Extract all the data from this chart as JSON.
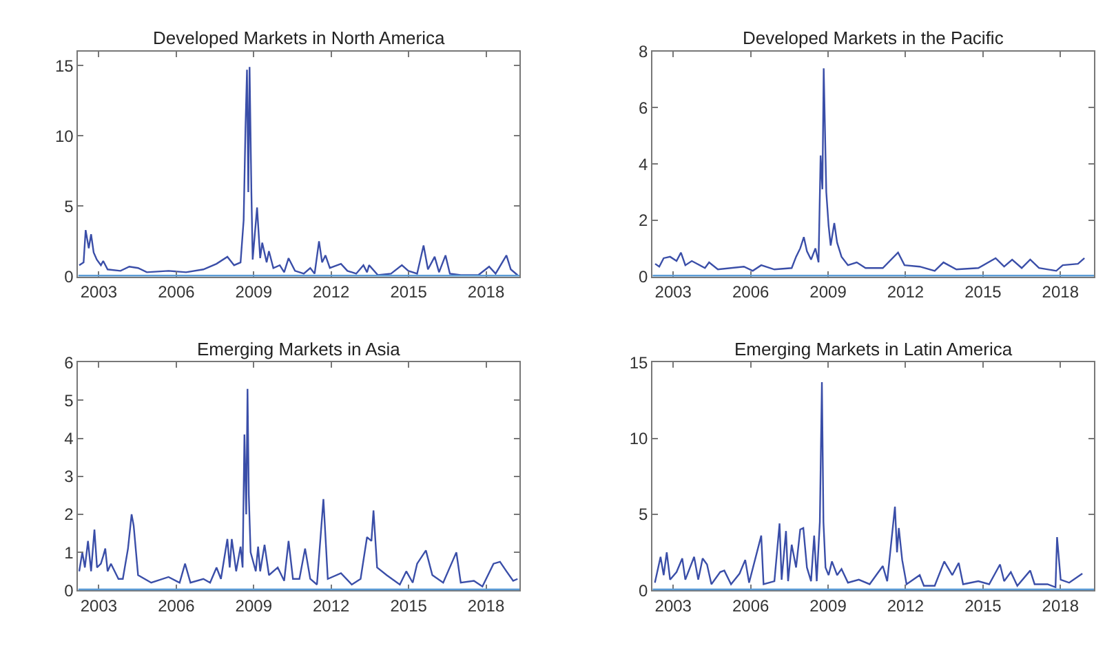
{
  "chart_data": [
    {
      "type": "line",
      "title": "Developed Markets in North America",
      "x": [
        2002.24,
        2002.41,
        2002.49,
        2002.61,
        2002.7,
        2002.8,
        2002.92,
        2003.08,
        2003.17,
        2003.34,
        2003.84,
        2004.18,
        2004.52,
        2004.86,
        2005.7,
        2006.38,
        2007.05,
        2007.56,
        2007.98,
        2008.24,
        2008.49,
        2008.61,
        2008.68,
        2008.74,
        2008.79,
        2008.84,
        2008.91,
        2008.96,
        2009.13,
        2009.25,
        2009.33,
        2009.5,
        2009.59,
        2009.76,
        2010.01,
        2010.18,
        2010.35,
        2010.6,
        2010.94,
        2011.19,
        2011.36,
        2011.53,
        2011.65,
        2011.78,
        2011.95,
        2012.38,
        2012.63,
        2012.97,
        2013.25,
        2013.39,
        2013.47,
        2013.81,
        2014.32,
        2014.74,
        2014.99,
        2015.33,
        2015.58,
        2015.75,
        2016.01,
        2016.18,
        2016.43,
        2016.6,
        2017.02,
        2017.7,
        2018.12,
        2018.37,
        2018.79,
        2018.96,
        2019.22
      ],
      "series": [
        {
          "color": "#3a4ea8",
          "values": [
            0.8,
            1.0,
            3.3,
            2.0,
            3.0,
            1.7,
            1.2,
            0.8,
            1.1,
            0.5,
            0.4,
            0.7,
            0.6,
            0.3,
            0.4,
            0.3,
            0.5,
            0.9,
            1.4,
            0.8,
            1.0,
            4.0,
            10.5,
            14.7,
            6.0,
            14.9,
            6.0,
            1.2,
            4.9,
            1.3,
            2.4,
            1.0,
            1.8,
            0.6,
            0.8,
            0.3,
            1.3,
            0.4,
            0.2,
            0.6,
            0.2,
            2.5,
            1.0,
            1.5,
            0.6,
            0.9,
            0.4,
            0.2,
            0.8,
            0.3,
            0.8,
            0.1,
            0.2,
            0.8,
            0.4,
            0.2,
            2.2,
            0.5,
            1.4,
            0.3,
            1.5,
            0.2,
            0.1,
            0.1,
            0.7,
            0.2,
            1.5,
            0.5,
            0.1
          ]
        }
      ],
      "xlim": [
        2002.2,
        2019.3
      ],
      "xticks": [
        2003,
        2006,
        2009,
        2012,
        2015,
        2018
      ],
      "ylim": [
        0,
        16
      ],
      "yticks": [
        0,
        5,
        10,
        15
      ],
      "ref_lines": [
        {
          "axis": "y",
          "value": 0,
          "color": "#5b9bd5"
        }
      ]
    },
    {
      "type": "line",
      "title": "Developed Markets in the Pacific",
      "x": [
        2002.3,
        2002.46,
        2002.63,
        2002.88,
        2003.13,
        2003.3,
        2003.47,
        2003.72,
        2004.23,
        2004.39,
        2004.73,
        2005.74,
        2006.08,
        2006.41,
        2006.92,
        2007.59,
        2007.76,
        2007.92,
        2008.06,
        2008.18,
        2008.34,
        2008.51,
        2008.63,
        2008.71,
        2008.78,
        2008.83,
        2008.93,
        2009.02,
        2009.1,
        2009.24,
        2009.35,
        2009.52,
        2009.77,
        2010.11,
        2010.45,
        2011.12,
        2011.71,
        2011.96,
        2012.55,
        2013.13,
        2013.47,
        2013.97,
        2014.82,
        2015.49,
        2015.82,
        2016.13,
        2016.5,
        2016.83,
        2017.17,
        2017.84,
        2018.09,
        2018.68,
        2018.93
      ],
      "series": [
        {
          "color": "#3a4ea8",
          "values": [
            0.45,
            0.35,
            0.65,
            0.7,
            0.55,
            0.85,
            0.4,
            0.55,
            0.3,
            0.5,
            0.25,
            0.35,
            0.2,
            0.4,
            0.25,
            0.3,
            0.7,
            1.0,
            1.4,
            0.9,
            0.6,
            1.0,
            0.5,
            4.3,
            3.1,
            7.4,
            3.0,
            1.8,
            1.1,
            1.9,
            1.2,
            0.7,
            0.4,
            0.5,
            0.3,
            0.3,
            0.85,
            0.4,
            0.35,
            0.2,
            0.5,
            0.25,
            0.3,
            0.65,
            0.35,
            0.6,
            0.3,
            0.6,
            0.3,
            0.2,
            0.4,
            0.45,
            0.65
          ]
        }
      ],
      "xlim": [
        2002.2,
        2019.3
      ],
      "xticks": [
        2003,
        2006,
        2009,
        2012,
        2015,
        2018
      ],
      "ylim": [
        0,
        8
      ],
      "yticks": [
        0,
        2,
        4,
        6,
        8
      ],
      "ref_lines": [
        {
          "axis": "y",
          "value": 0,
          "color": "#5b9bd5"
        }
      ]
    },
    {
      "type": "line",
      "title": "Emerging Markets in Asia",
      "x": [
        2002.24,
        2002.36,
        2002.46,
        2002.58,
        2002.7,
        2002.83,
        2002.93,
        2003.08,
        2003.17,
        2003.25,
        2003.34,
        2003.47,
        2003.76,
        2003.93,
        2004.13,
        2004.27,
        2004.35,
        2004.52,
        2005.03,
        2005.7,
        2006.13,
        2006.34,
        2006.55,
        2007.05,
        2007.31,
        2007.56,
        2007.73,
        2007.98,
        2008.07,
        2008.15,
        2008.32,
        2008.49,
        2008.57,
        2008.64,
        2008.71,
        2008.76,
        2008.81,
        2008.88,
        2009.08,
        2009.17,
        2009.25,
        2009.42,
        2009.59,
        2009.93,
        2010.18,
        2010.35,
        2010.52,
        2010.77,
        2010.99,
        2011.19,
        2011.45,
        2011.7,
        2011.87,
        2012.38,
        2012.8,
        2013.14,
        2013.39,
        2013.56,
        2013.64,
        2013.78,
        2014.15,
        2014.66,
        2014.91,
        2015.16,
        2015.33,
        2015.67,
        2015.92,
        2016.34,
        2016.85,
        2017.02,
        2017.53,
        2017.86,
        2018.29,
        2018.54,
        2018.79,
        2019.05,
        2019.22
      ],
      "series": [
        {
          "color": "#3a4ea8",
          "values": [
            0.5,
            1.0,
            0.6,
            1.3,
            0.5,
            1.6,
            0.6,
            0.7,
            0.9,
            1.1,
            0.5,
            0.7,
            0.3,
            0.3,
            1.1,
            2.0,
            1.7,
            0.4,
            0.2,
            0.35,
            0.2,
            0.7,
            0.2,
            0.3,
            0.2,
            0.6,
            0.3,
            1.35,
            0.6,
            1.35,
            0.5,
            1.15,
            0.6,
            4.1,
            2.0,
            5.3,
            2.5,
            1.0,
            0.5,
            1.15,
            0.5,
            1.2,
            0.4,
            0.6,
            0.25,
            1.3,
            0.3,
            0.3,
            1.1,
            0.3,
            0.15,
            2.4,
            0.3,
            0.45,
            0.15,
            0.3,
            1.4,
            1.3,
            2.1,
            0.6,
            0.4,
            0.15,
            0.5,
            0.2,
            0.7,
            1.05,
            0.4,
            0.2,
            1.0,
            0.2,
            0.25,
            0.1,
            0.7,
            0.75,
            0.5,
            0.25,
            0.3
          ]
        }
      ],
      "xlim": [
        2002.2,
        2019.3
      ],
      "xticks": [
        2003,
        2006,
        2009,
        2012,
        2015,
        2018
      ],
      "ylim": [
        0,
        6
      ],
      "yticks": [
        0,
        1,
        2,
        3,
        4,
        5,
        6
      ],
      "ref_lines": [
        {
          "axis": "y",
          "value": 0,
          "color": "#5b9bd5"
        }
      ]
    },
    {
      "type": "line",
      "title": "Emerging Markets in Latin America",
      "x": [
        2002.29,
        2002.51,
        2002.63,
        2002.75,
        2002.88,
        2003.13,
        2003.35,
        2003.47,
        2003.81,
        2003.97,
        2004.14,
        2004.31,
        2004.48,
        2004.82,
        2004.98,
        2005.24,
        2005.57,
        2005.79,
        2005.94,
        2006.41,
        2006.5,
        2006.92,
        2007.12,
        2007.2,
        2007.37,
        2007.45,
        2007.59,
        2007.76,
        2007.92,
        2008.04,
        2008.18,
        2008.34,
        2008.46,
        2008.56,
        2008.68,
        2008.76,
        2008.82,
        2008.9,
        2009.02,
        2009.15,
        2009.35,
        2009.52,
        2009.77,
        2010.19,
        2010.61,
        2011.12,
        2011.29,
        2011.59,
        2011.67,
        2011.74,
        2011.87,
        2012.04,
        2012.55,
        2012.71,
        2013.13,
        2013.5,
        2013.81,
        2014.06,
        2014.23,
        2014.82,
        2015.24,
        2015.66,
        2015.82,
        2016.08,
        2016.33,
        2016.83,
        2017.0,
        2017.5,
        2017.81,
        2017.87,
        2018.01,
        2018.34,
        2018.85
      ],
      "series": [
        {
          "color": "#3a4ea8",
          "values": [
            0.5,
            2.2,
            1.0,
            2.5,
            0.7,
            1.2,
            2.1,
            0.7,
            2.2,
            0.7,
            2.1,
            1.7,
            0.4,
            1.2,
            1.3,
            0.4,
            1.1,
            2.0,
            0.5,
            3.6,
            0.4,
            0.6,
            4.4,
            0.7,
            3.9,
            0.6,
            3.0,
            1.5,
            4.0,
            4.1,
            1.5,
            0.6,
            3.6,
            0.6,
            4.5,
            13.7,
            4.5,
            1.5,
            1.0,
            1.9,
            1.0,
            1.4,
            0.5,
            0.7,
            0.4,
            1.6,
            0.6,
            5.5,
            2.5,
            4.1,
            2.0,
            0.4,
            1.0,
            0.3,
            0.3,
            1.9,
            1.0,
            1.8,
            0.4,
            0.6,
            0.4,
            1.7,
            0.6,
            1.2,
            0.3,
            1.3,
            0.4,
            0.4,
            0.2,
            3.5,
            0.7,
            0.5,
            1.1
          ]
        }
      ],
      "xlim": [
        2002.2,
        2019.3
      ],
      "xticks": [
        2003,
        2006,
        2009,
        2012,
        2015,
        2018
      ],
      "ylim": [
        0,
        15
      ],
      "yticks": [
        0,
        5,
        10,
        15
      ],
      "ref_lines": [
        {
          "axis": "y",
          "value": 0,
          "color": "#5b9bd5"
        }
      ]
    }
  ]
}
